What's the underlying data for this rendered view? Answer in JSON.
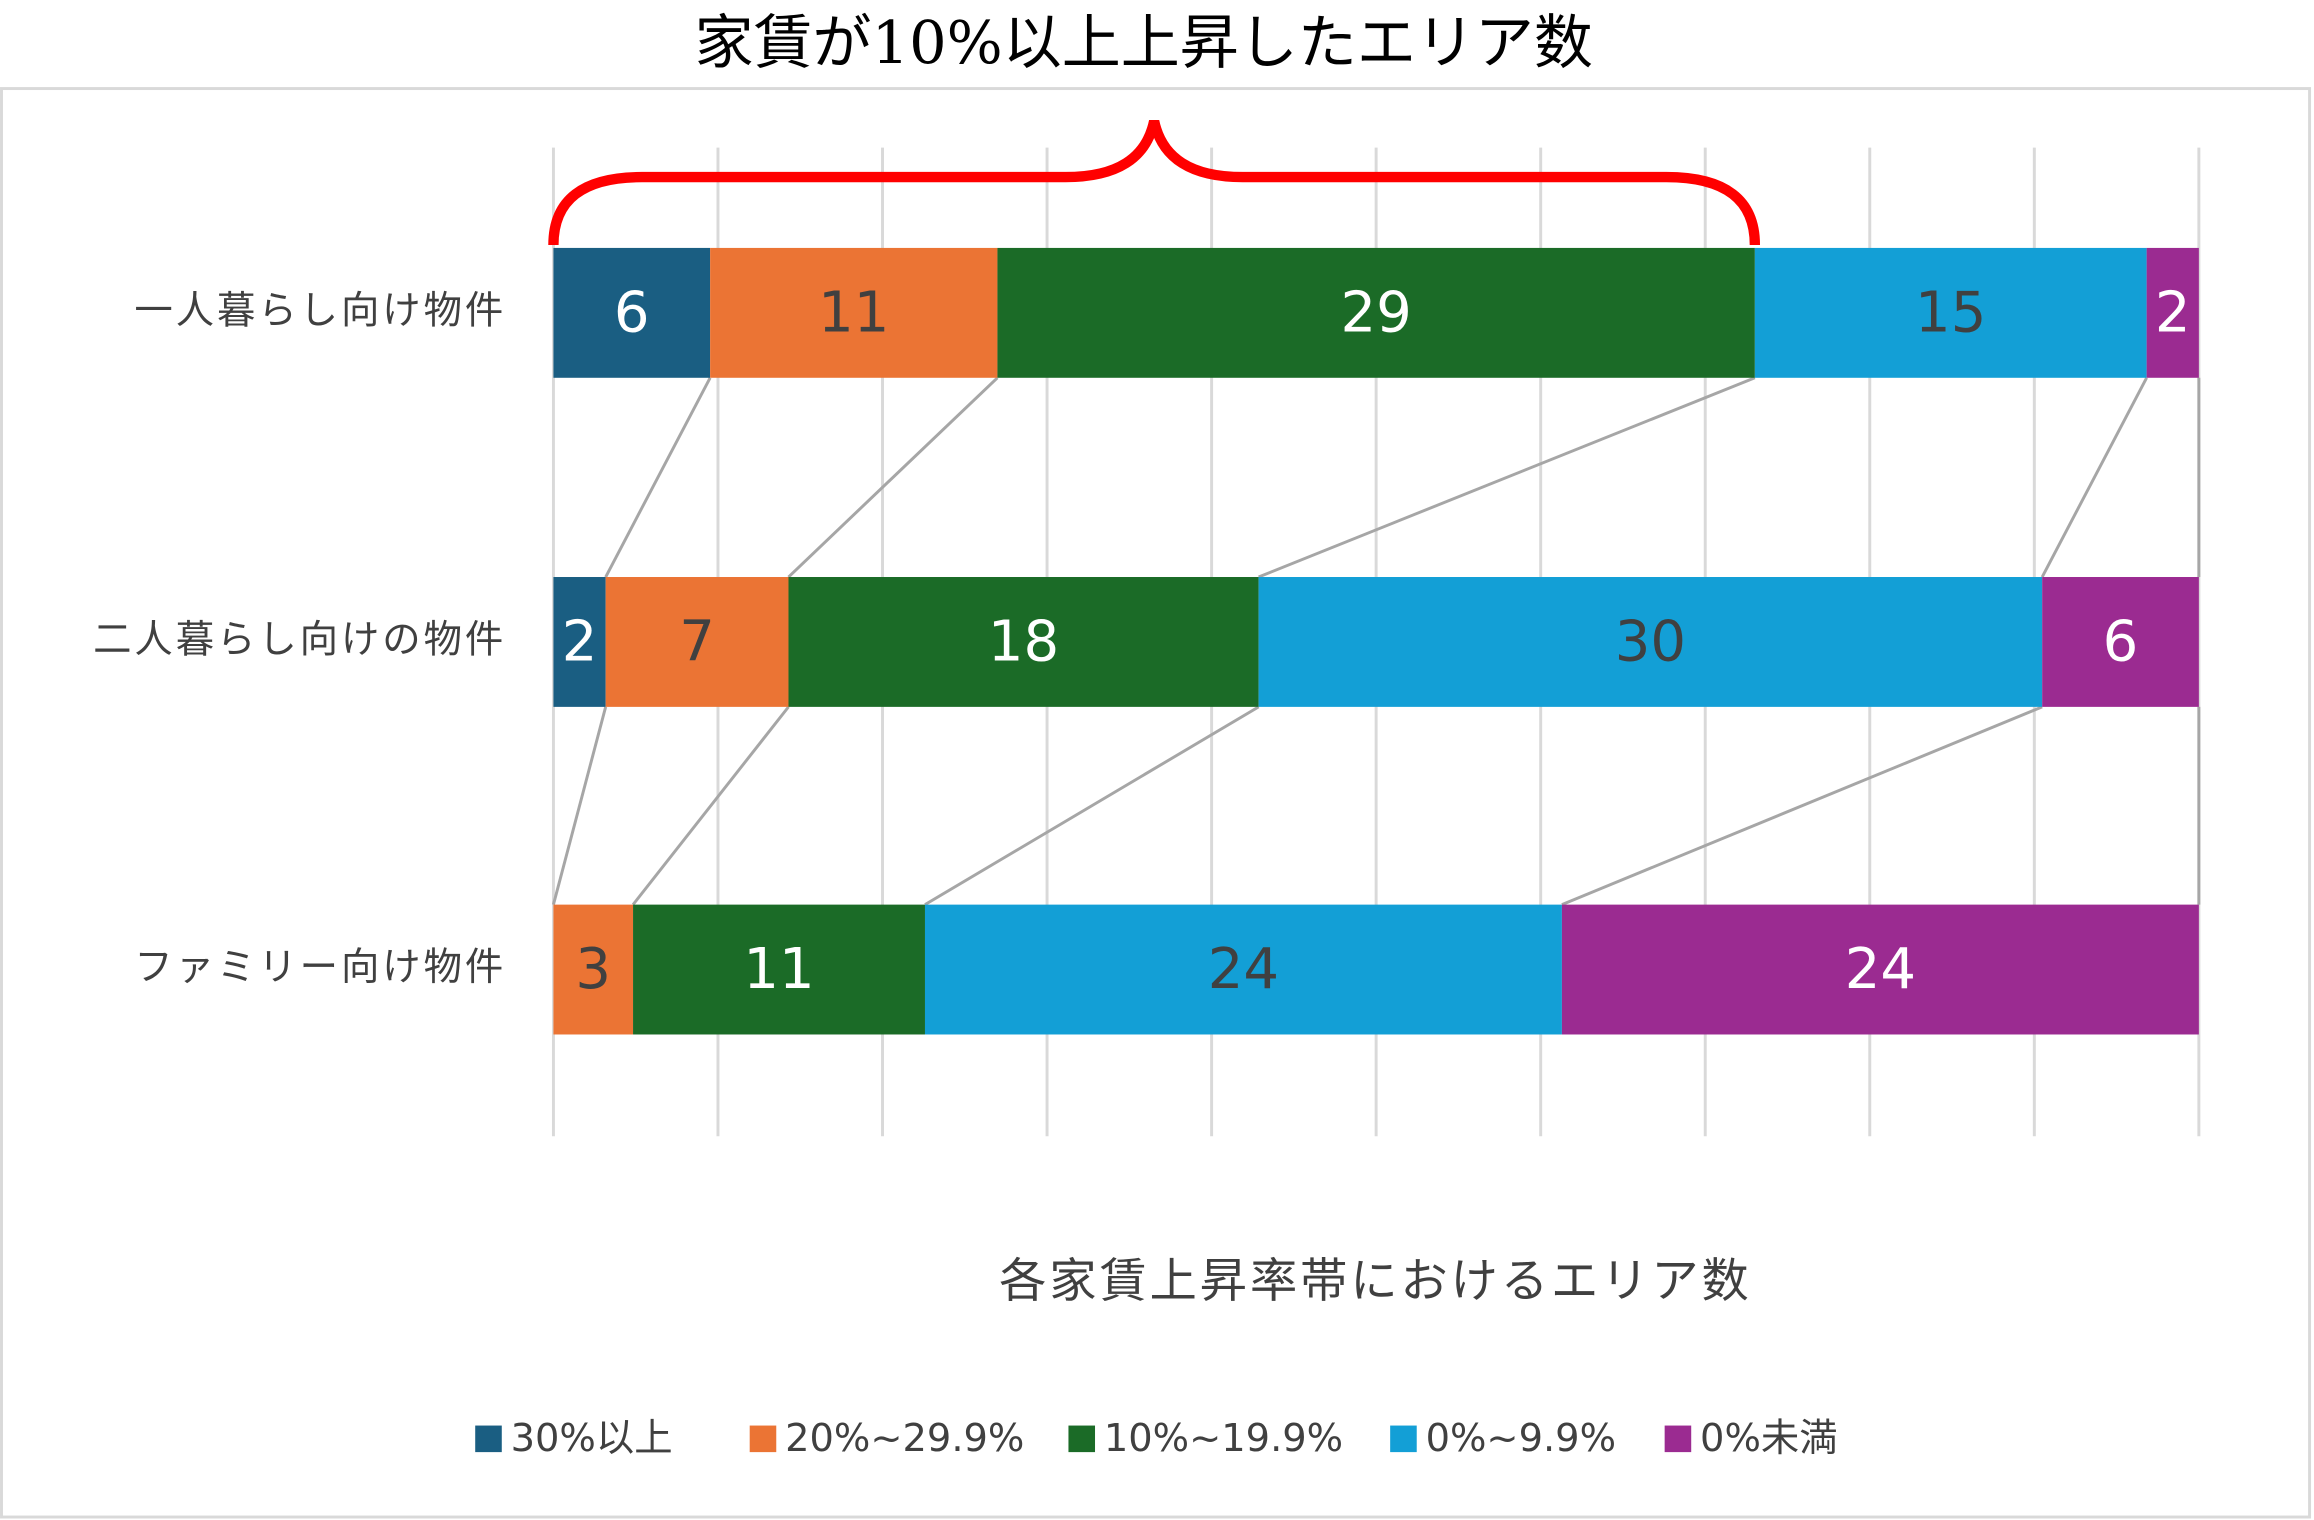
{
  "chart_data": {
    "type": "bar",
    "orientation": "horizontal",
    "stacked": "percent",
    "title": "家賃が10%以上上昇したエリア数",
    "xlabel": "各家賃上昇率帯におけるエリア数",
    "categories": [
      "一人暮らし向け物件",
      "二人暮らし向けの物件",
      "ファミリー向け物件"
    ],
    "series": [
      {
        "name": "30%以上",
        "color": "#1a5e82",
        "label_color": "#ffffff",
        "values": [
          6,
          2,
          0
        ]
      },
      {
        "name": "20%~29.9%",
        "color": "#eb7434",
        "label_color": "#404040",
        "values": [
          11,
          7,
          3
        ]
      },
      {
        "name": "10%~19.9%",
        "color": "#1b6b27",
        "label_color": "#ffffff",
        "values": [
          29,
          18,
          11
        ]
      },
      {
        "name": "0%~9.9%",
        "color": "#139fd6",
        "label_color": "#404040",
        "values": [
          15,
          30,
          24
        ]
      },
      {
        "name": "0%未満",
        "color": "#9b2b91",
        "label_color": "#ffffff",
        "values": [
          2,
          6,
          24
        ]
      }
    ],
    "xlim": [
      0,
      100
    ],
    "xticks": [
      0,
      10,
      20,
      30,
      40,
      50,
      60,
      70,
      80,
      90,
      100
    ],
    "grid": true,
    "legend": "bottom",
    "bracket_color": "#ff0000"
  }
}
